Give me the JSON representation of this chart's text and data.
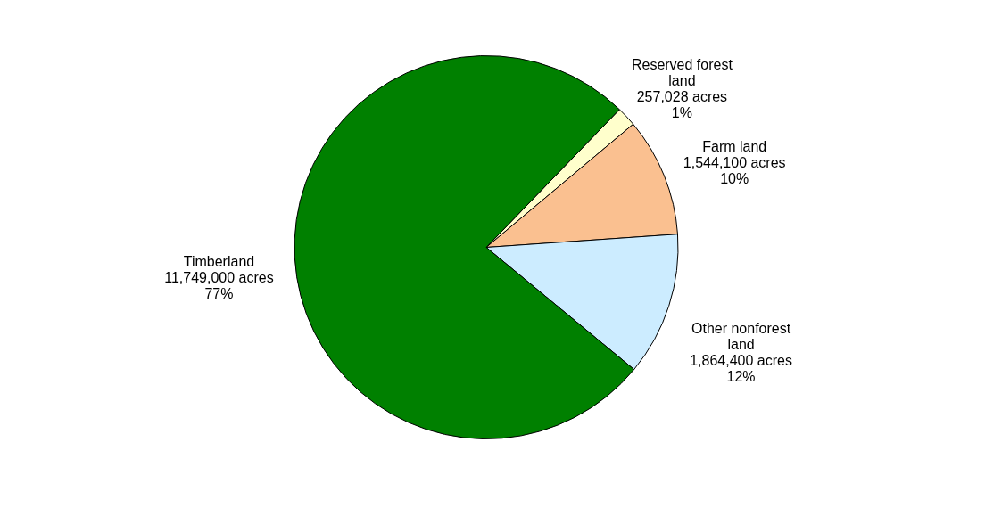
{
  "chart_data": {
    "type": "pie",
    "categories": [
      "Reserved forest land",
      "Farm land",
      "Other nonforest land",
      "Timberland"
    ],
    "values": [
      257028,
      1544100,
      1864400,
      11749000
    ],
    "value_labels": [
      "257,028 acres\n1%",
      "1,544,100 acres\n10%",
      "1,864,400 acres\n12%",
      "11,749,000 acres\n77%"
    ],
    "colors": [
      "#ffffcc",
      "#fac090",
      "#ccecff",
      "#008000"
    ],
    "legend": false
  }
}
